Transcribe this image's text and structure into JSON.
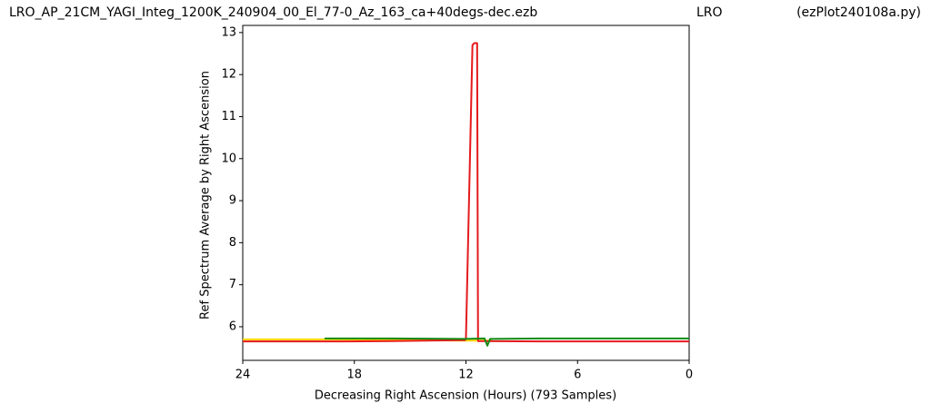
{
  "chart_data": {
    "type": "line",
    "title_left": "LRO_AP_21CM_YAGI_Integ_1200K_240904_00_El_77-0_Az_163_ca+40degs-dec.ezb",
    "title": "LRO",
    "title_right": "(ezPlot240108a.py)",
    "xlabel": "Decreasing Right Ascension (Hours) (793 Samples)",
    "ylabel": "Ref Spectrum Average by Right Ascension",
    "xlim": [
      24,
      0
    ],
    "xticks": [
      24,
      18,
      12,
      6,
      0
    ],
    "ylim": [
      5.2,
      13.17
    ],
    "yticks": [
      6,
      7,
      8,
      9,
      10,
      11,
      12,
      13
    ],
    "series": [
      {
        "color": "#ffd700",
        "x": [
          24,
          19,
          15,
          12,
          10.6
        ],
        "values": [
          5.7,
          5.7,
          5.68,
          5.67,
          5.67
        ]
      },
      {
        "color": "#e41a1c",
        "x": [
          24,
          19,
          16,
          12.05,
          12,
          11.65,
          11.55,
          11.4,
          11.35,
          8,
          4,
          0
        ],
        "values": [
          5.65,
          5.65,
          5.66,
          5.68,
          5.72,
          12.7,
          12.75,
          12.75,
          5.66,
          5.65,
          5.65,
          5.65
        ]
      },
      {
        "color": "#138a13",
        "x": [
          19.6,
          16,
          12,
          11,
          10.85,
          10.7,
          8,
          4,
          0
        ],
        "values": [
          5.72,
          5.72,
          5.71,
          5.72,
          5.55,
          5.71,
          5.72,
          5.72,
          5.72
        ]
      }
    ]
  }
}
